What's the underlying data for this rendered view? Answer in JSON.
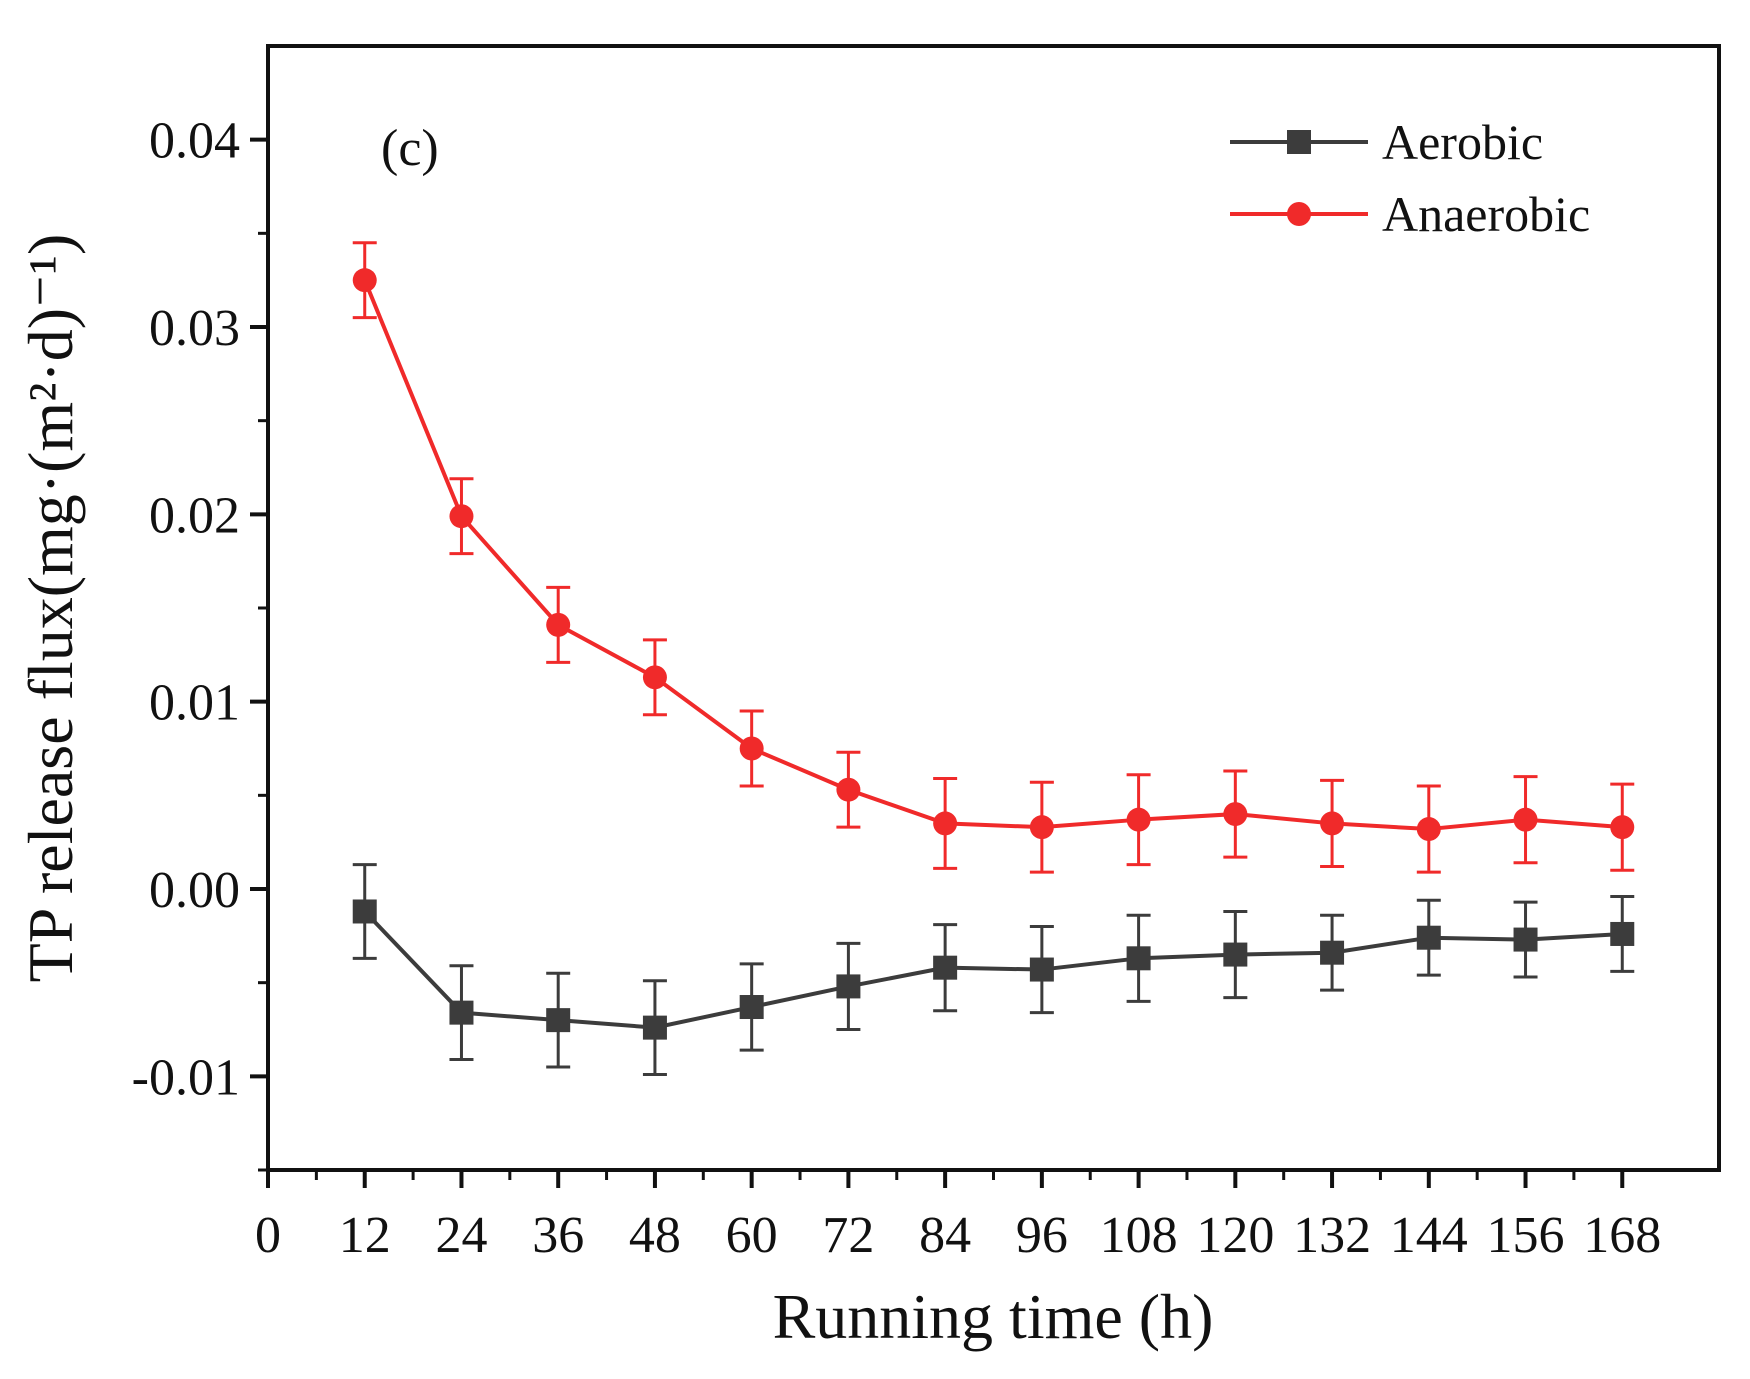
{
  "chart_data": {
    "type": "line",
    "panel_label": "(c)",
    "xlabel": "Running time (h)",
    "ylabel": "TP release flux(mg·(m²·d)⁻¹)",
    "xlim": [
      0,
      180
    ],
    "ylim": [
      -0.015,
      0.045
    ],
    "xticks": [
      0,
      12,
      24,
      36,
      48,
      60,
      72,
      84,
      96,
      108,
      120,
      132,
      144,
      156,
      168
    ],
    "xtick_labels": [
      "0",
      "12",
      "24",
      "36",
      "48",
      "60",
      "72",
      "84",
      "96",
      "108",
      "120",
      "132",
      "144",
      "156",
      "168"
    ],
    "yticks": [
      -0.01,
      0.0,
      0.01,
      0.02,
      0.03,
      0.04
    ],
    "ytick_labels": [
      "-0.01",
      "0.00",
      "0.01",
      "0.02",
      "0.03",
      "0.04"
    ],
    "legend_position": "top-right",
    "grid": false,
    "x": [
      12,
      24,
      36,
      48,
      60,
      72,
      84,
      96,
      108,
      120,
      132,
      144,
      156,
      168
    ],
    "series": [
      {
        "name": "Aerobic",
        "color": "#3c3c3c",
        "marker": "square",
        "values": [
          -0.0012,
          -0.0066,
          -0.007,
          -0.0074,
          -0.0063,
          -0.0052,
          -0.0042,
          -0.0043,
          -0.0037,
          -0.0035,
          -0.0034,
          -0.0026,
          -0.0027,
          -0.0024
        ],
        "error": [
          0.0025,
          0.0025,
          0.0025,
          0.0025,
          0.0023,
          0.0023,
          0.0023,
          0.0023,
          0.0023,
          0.0023,
          0.002,
          0.002,
          0.002,
          0.002
        ]
      },
      {
        "name": "Anaerobic",
        "color": "#f02a2a",
        "marker": "circle",
        "values": [
          0.0325,
          0.0199,
          0.0141,
          0.0113,
          0.0075,
          0.0053,
          0.0035,
          0.0033,
          0.0037,
          0.004,
          0.0035,
          0.0032,
          0.0037,
          0.0033
        ],
        "error": [
          0.002,
          0.002,
          0.002,
          0.002,
          0.002,
          0.002,
          0.0024,
          0.0024,
          0.0024,
          0.0023,
          0.0023,
          0.0023,
          0.0023,
          0.0023
        ]
      }
    ]
  }
}
